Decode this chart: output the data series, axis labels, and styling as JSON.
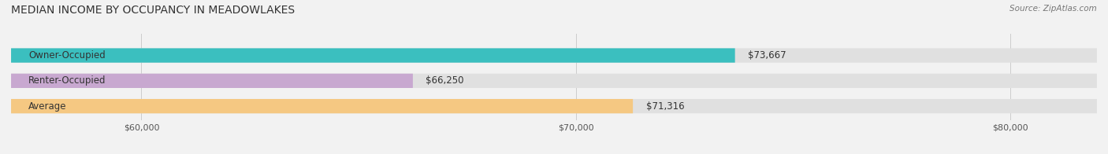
{
  "title": "MEDIAN INCOME BY OCCUPANCY IN MEADOWLAKES",
  "source": "Source: ZipAtlas.com",
  "categories": [
    "Owner-Occupied",
    "Renter-Occupied",
    "Average"
  ],
  "values": [
    73667,
    66250,
    71316
  ],
  "bar_colors": [
    "#3bbfbf",
    "#c8a8d0",
    "#f5c882"
  ],
  "value_labels": [
    "$73,667",
    "$66,250",
    "$71,316"
  ],
  "xmin": 57000,
  "xmax": 82000,
  "xticks": [
    60000,
    70000,
    80000
  ],
  "xtick_labels": [
    "$60,000",
    "$70,000",
    "$80,000"
  ],
  "title_fontsize": 10,
  "source_fontsize": 7.5,
  "label_fontsize": 8.5,
  "value_fontsize": 8.5,
  "background_color": "#f2f2f2"
}
